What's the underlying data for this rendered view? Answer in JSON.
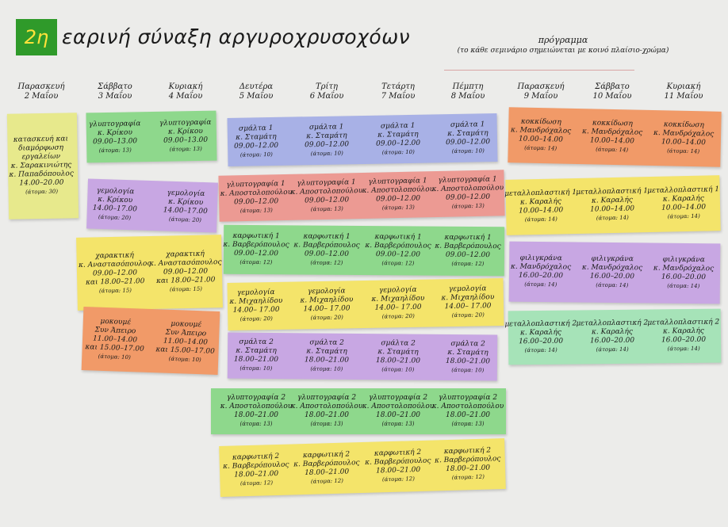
{
  "header": {
    "logo_text": "2η",
    "title": "εαρινή σύναξη αργυροχρυσοχόων",
    "program_title": "πρόγραμμα",
    "program_note": "(το κάθε σεμινάριο σημειώνεται με κοινό πλαίσιο-χρώμα)"
  },
  "days": [
    {
      "day": "Παρασκευή",
      "date": "2 Μαΐου"
    },
    {
      "day": "Σάββατο",
      "date": "3 Μαΐου"
    },
    {
      "day": "Κυριακή",
      "date": "4 Μαΐου"
    },
    {
      "day": "Δευτέρα",
      "date": "5 Μαΐου"
    },
    {
      "day": "Τρίτη",
      "date": "6 Μαΐου"
    },
    {
      "day": "Τετάρτη",
      "date": "7 Μαΐου"
    },
    {
      "day": "Πέμπτη",
      "date": "8 Μαΐου"
    },
    {
      "day": "Παρασκευή",
      "date": "9 Μαΐου"
    },
    {
      "day": "Σάββατο",
      "date": "10 Μαΐου"
    },
    {
      "day": "Κυριακή",
      "date": "11 Μαΐου"
    }
  ],
  "cards": [
    {
      "color": "#e7e98c",
      "cells": [
        {
          "lines": [
            "κατασκευή και",
            "διαμόρφωση",
            "εργαλείων",
            "κ. Σαρακινιώτης",
            "κ. Παπαδόπουλος",
            "14.00–20.00"
          ],
          "note": "(άτομα: 30)"
        }
      ]
    },
    {
      "color": "#8ed88c",
      "cells": [
        {
          "lines": [
            "γλυπτογραφία",
            "κ. Κρίκου",
            "09.00–13.00"
          ],
          "note": "(άτομα: 13)"
        },
        {
          "lines": [
            "γλυπτογραφία",
            "κ. Κρίκου",
            "09.00–13.00"
          ],
          "note": "(άτομα: 13)"
        }
      ]
    },
    {
      "color": "#c8a7e3",
      "cells": [
        {
          "lines": [
            "γεμολογία",
            "κ. Κρίκου",
            "14.00–17.00"
          ],
          "note": "(άτομα: 20)"
        },
        {
          "lines": [
            "γεμολογία",
            "κ. Κρίκου",
            "14.00–17.00"
          ],
          "note": "(άτομα: 20)"
        }
      ]
    },
    {
      "color": "#f4e46a",
      "cells": [
        {
          "lines": [
            "χαρακτική",
            "κ. Αναστασόπουλος",
            "09.00–12.00",
            "και 18.00–21.00"
          ],
          "note": "(άτομα: 15)"
        },
        {
          "lines": [
            "χαρακτική",
            "κ. Αναστασόπουλος",
            "09.00–12.00",
            "και 18.00–21.00"
          ],
          "note": "(άτομα: 15)"
        }
      ]
    },
    {
      "color": "#f19a68",
      "cells": [
        {
          "lines": [
            "μοκουμέ",
            "Συν Άπειρο",
            "11.00–14.00",
            "και 15.00–17.00"
          ],
          "note": "(άτομα: 10)"
        },
        {
          "lines": [
            "μοκουμέ",
            "Συν Άπειρο",
            "11.00–14.00",
            "και 15.00–17.00"
          ],
          "note": "(άτομα: 10)"
        }
      ]
    },
    {
      "color": "#a8b1e6",
      "cells": [
        {
          "lines": [
            "σμάλτα 1",
            "κ. Σταμάτη",
            "09.00–12.00"
          ],
          "note": "(άτομα: 10)"
        },
        {
          "lines": [
            "σμάλτα 1",
            "κ. Σταμάτη",
            "09.00–12.00"
          ],
          "note": "(άτομα: 10)"
        },
        {
          "lines": [
            "σμάλτα 1",
            "κ. Σταμάτη",
            "09.00–12.00"
          ],
          "note": "(άτομα: 10)"
        },
        {
          "lines": [
            "σμάλτα 1",
            "κ. Σταμάτη",
            "09.00–12.00"
          ],
          "note": "(άτομα: 10)"
        }
      ]
    },
    {
      "color": "#ec9a93",
      "cells": [
        {
          "lines": [
            "γλυπτογραφία 1",
            "κ. Αποστολοπούλου",
            "09.00–12.00"
          ],
          "note": "(άτομα: 13)"
        },
        {
          "lines": [
            "γλυπτογραφία 1",
            "κ. Αποστολοπούλου",
            "09.00–12.00"
          ],
          "note": "(άτομα: 13)"
        },
        {
          "lines": [
            "γλυπτογραφία 1",
            "κ. Αποστολοπούλου",
            "09.00–12.00"
          ],
          "note": "(άτομα: 13)"
        },
        {
          "lines": [
            "γλυπτογραφία 1",
            "κ. Αποστολοπούλου",
            "09.00–12.00"
          ],
          "note": "(άτομα: 13)"
        }
      ]
    },
    {
      "color": "#8ed88c",
      "cells": [
        {
          "lines": [
            "καρφωτική 1",
            "κ. Βαρβερόπουλος",
            "09.00–12.00"
          ],
          "note": "(άτομα: 12)"
        },
        {
          "lines": [
            "καρφωτική 1",
            "κ. Βαρβερόπουλος",
            "09.00–12.00"
          ],
          "note": "(άτομα: 12)"
        },
        {
          "lines": [
            "καρφωτική 1",
            "κ. Βαρβερόπουλος",
            "09.00–12.00"
          ],
          "note": "(άτομα: 12)"
        },
        {
          "lines": [
            "καρφωτική 1",
            "κ. Βαρβερόπουλος",
            "09.00–12.00"
          ],
          "note": "(άτομα: 12)"
        }
      ]
    },
    {
      "color": "#f4e46a",
      "cells": [
        {
          "lines": [
            "γεμολογία",
            "κ. Μιχαηλίδου",
            "14.00– 17.00"
          ],
          "note": "(άτομα: 20)"
        },
        {
          "lines": [
            "γεμολογία",
            "κ. Μιχαηλίδου",
            "14.00– 17.00"
          ],
          "note": "(άτομα: 20)"
        },
        {
          "lines": [
            "γεμολογία",
            "κ. Μιχαηλίδου",
            "14.00– 17.00"
          ],
          "note": "(άτομα: 20)"
        },
        {
          "lines": [
            "γεμολογία",
            "κ. Μιχαηλίδου",
            "14.00– 17.00"
          ],
          "note": "(άτομα: 20)"
        }
      ]
    },
    {
      "color": "#c8a7e3",
      "cells": [
        {
          "lines": [
            "σμάλτα 2",
            "κ. Σταμάτη",
            "18.00–21.00"
          ],
          "note": "(άτομα: 10)"
        },
        {
          "lines": [
            "σμάλτα 2",
            "κ. Σταμάτη",
            "18.00–21.00"
          ],
          "note": "(άτομα: 10)"
        },
        {
          "lines": [
            "σμάλτα 2",
            "κ. Σταμάτη",
            "18.00–21.00"
          ],
          "note": "(άτομα: 10)"
        },
        {
          "lines": [
            "σμάλτα 2",
            "κ. Σταμάτη",
            "18.00–21.00"
          ],
          "note": "(άτομα: 10)"
        }
      ]
    },
    {
      "color": "#8ed88c",
      "cells": [
        {
          "lines": [
            "γλυπτογραφία 2",
            "κ. Αποστολοπούλου",
            "18.00–21.00"
          ],
          "note": "(άτομα: 13)"
        },
        {
          "lines": [
            "γλυπτογραφία 2",
            "κ. Αποστολοπούλου",
            "18.00–21.00"
          ],
          "note": "(άτομα: 13)"
        },
        {
          "lines": [
            "γλυπτογραφία 2",
            "κ. Αποστολοπούλου",
            "18.00–21.00"
          ],
          "note": "(άτομα: 13)"
        },
        {
          "lines": [
            "γλυπτογραφία 2",
            "κ. Αποστολοπούλου",
            "18.00–21.00"
          ],
          "note": "(άτομα: 13)"
        }
      ]
    },
    {
      "color": "#f4e46a",
      "cells": [
        {
          "lines": [
            "καρφωτική 2",
            "κ. Βαρβερόπουλος",
            "18.00–21.00"
          ],
          "note": "(άτομα: 12)"
        },
        {
          "lines": [
            "καρφωτική 2",
            "κ. Βαρβερόπουλος",
            "18.00–21.00"
          ],
          "note": "(άτομα: 12)"
        },
        {
          "lines": [
            "καρφωτική 2",
            "κ. Βαρβερόπουλος",
            "18.00–21.00"
          ],
          "note": "(άτομα: 12)"
        },
        {
          "lines": [
            "καρφωτική 2",
            "κ. Βαρβερόπουλος",
            "18.00–21.00"
          ],
          "note": "(άτομα: 12)"
        }
      ]
    },
    {
      "color": "#f19a68",
      "cells": [
        {
          "lines": [
            "κοκκίδωση",
            "κ. Μανδρόχαλος",
            "10.00–14.00"
          ],
          "note": "(άτομα: 14)"
        },
        {
          "lines": [
            "κοκκίδωση",
            "κ. Μανδρόχαλος",
            "10.00–14.00"
          ],
          "note": "(άτομα: 14)"
        },
        {
          "lines": [
            "κοκκίδωση",
            "κ. Μανδρόχαλος",
            "10.00–14.00"
          ],
          "note": "(άτομα: 14)"
        }
      ]
    },
    {
      "color": "#f4e46a",
      "cells": [
        {
          "lines": [
            "μεταλλοπλαστική 1",
            "κ. Καραλής",
            "10.00–14.00"
          ],
          "note": "(άτομα: 14)"
        },
        {
          "lines": [
            "μεταλλοπλαστική 1",
            "κ. Καραλής",
            "10.00–14.00"
          ],
          "note": "(άτομα: 14)"
        },
        {
          "lines": [
            "μεταλλοπλαστική 1",
            "κ. Καραλής",
            "10.00–14.00"
          ],
          "note": "(άτομα: 14)"
        }
      ]
    },
    {
      "color": "#c8a7e3",
      "cells": [
        {
          "lines": [
            "φιλιγκράνα",
            "κ. Μανδρόχαλος",
            "16.00–20.00"
          ],
          "note": "(άτομα: 14)"
        },
        {
          "lines": [
            "φιλιγκράνα",
            "κ. Μανδρόχαλος",
            "16.00–20.00"
          ],
          "note": "(άτομα: 14)"
        },
        {
          "lines": [
            "φιλιγκράνα",
            "κ. Μανδρόχαλος",
            "16.00–20.00"
          ],
          "note": "(άτομα: 14)"
        }
      ]
    },
    {
      "color": "#a6e3b8",
      "cells": [
        {
          "lines": [
            "μεταλλοπλαστική 2",
            "κ. Καραλής",
            "16.00–20.00"
          ],
          "note": "(άτομα: 14)"
        },
        {
          "lines": [
            "μεταλλοπλαστική 2",
            "κ. Καραλής",
            "16.00–20.00"
          ],
          "note": "(άτομα: 14)"
        },
        {
          "lines": [
            "μεταλλοπλαστική 2",
            "κ. Καραλής",
            "16.00–20.00"
          ],
          "note": "(άτομα: 14)"
        }
      ]
    }
  ]
}
